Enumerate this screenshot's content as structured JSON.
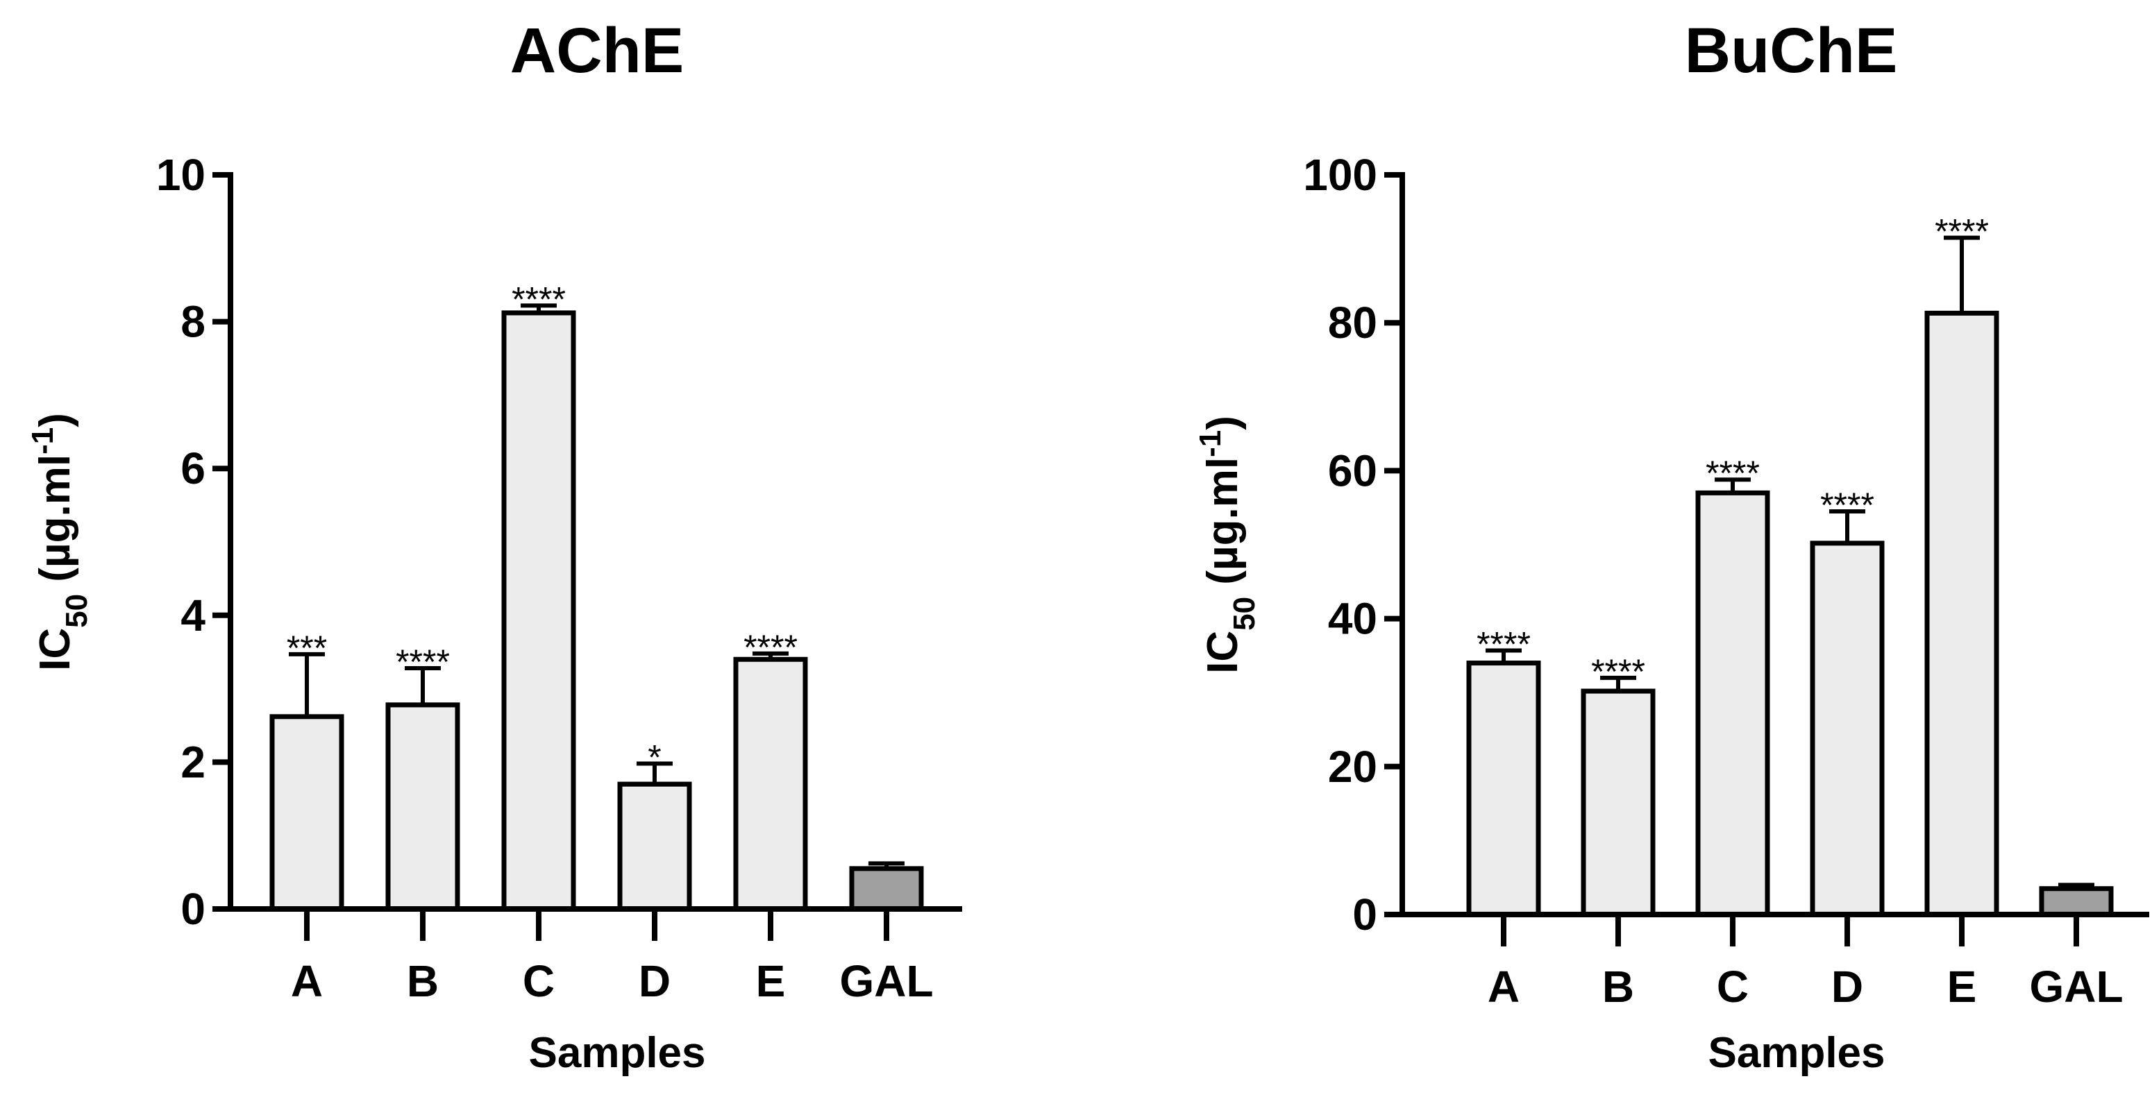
{
  "chart_data": [
    {
      "type": "bar",
      "title": "AChE",
      "x_label": "Samples",
      "y_label": [
        "IC",
        "50",
        " (µg.ml",
        "-1",
        ")"
      ],
      "categories": [
        "A",
        "B",
        "C",
        "D",
        "E",
        "GAL"
      ],
      "values": [
        2.62,
        2.78,
        8.12,
        1.7,
        3.4,
        0.55
      ],
      "errors": [
        0.85,
        0.5,
        0.1,
        0.28,
        0.08,
        0.07
      ],
      "annotations": [
        "***",
        "****",
        "****",
        "*",
        "****",
        null
      ],
      "colors": [
        "#ececec",
        "#ececec",
        "#ececec",
        "#ececec",
        "#ececec",
        "#a0a0a0"
      ],
      "ylim": [
        0,
        10
      ],
      "yticks": [
        0,
        2,
        4,
        6,
        8,
        10
      ]
    },
    {
      "type": "bar",
      "title": "BuChE",
      "x_label": "Samples",
      "y_label": [
        "IC",
        "50",
        " (µg.ml",
        "-1",
        ")"
      ],
      "categories": [
        "A",
        "B",
        "C",
        "D",
        "E",
        "GAL"
      ],
      "values": [
        34,
        30.2,
        57,
        50.2,
        81.3,
        3.5
      ],
      "errors": [
        1.7,
        1.8,
        1.8,
        4.3,
        10.2,
        0.5
      ],
      "annotations": [
        "****",
        "****",
        "****",
        "****",
        "****",
        null
      ],
      "colors": [
        "#ececec",
        "#ececec",
        "#ececec",
        "#ececec",
        "#ececec",
        "#a0a0a0"
      ],
      "ylim": [
        0,
        100
      ],
      "yticks": [
        0,
        20,
        40,
        60,
        80,
        100
      ]
    }
  ]
}
